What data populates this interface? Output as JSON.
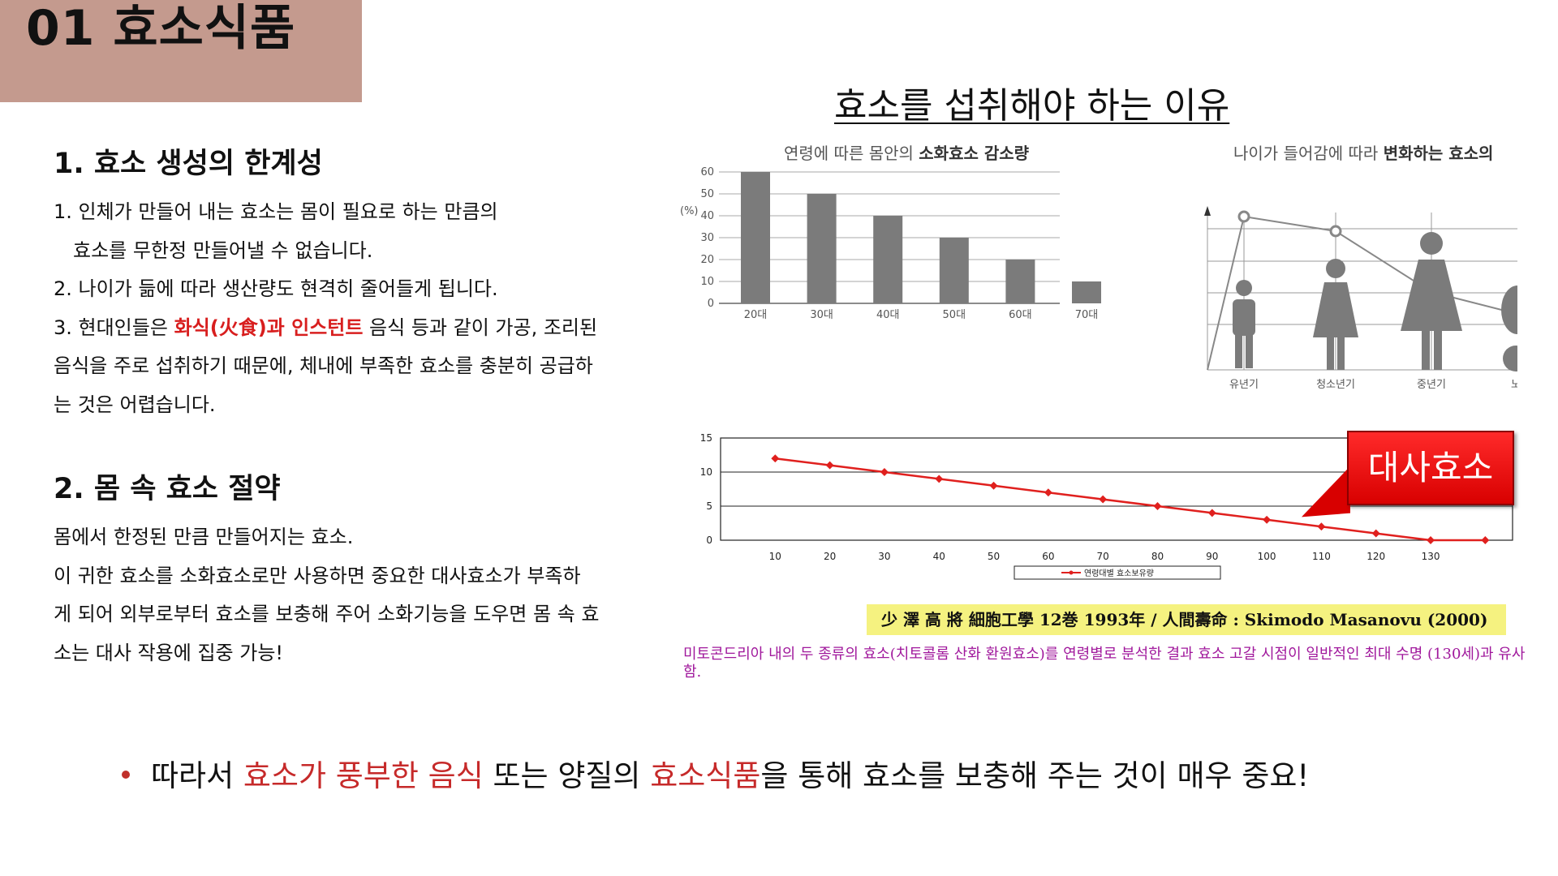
{
  "header": {
    "title": "01  효소식품"
  },
  "left": {
    "section1": {
      "heading": "1. 효소 생성의 한계성",
      "line1": "1. 인체가 만들어 내는 효소는 몸이 필요로 하는 만큼의",
      "line2": "효소를 무한정 만들어낼 수 없습니다.",
      "line3": "2. 나이가 듦에 따라 생산량도 현격히 줄어들게 됩니다.",
      "line4_pre": "3. 현대인들은 ",
      "line4_red": "화식(火食)과 인스턴트",
      "line4_post": " 음식 등과 같이 가공, 조리된",
      "line5": "음식을 주로 섭취하기 때문에, 체내에 부족한 효소를 충분히 공급하",
      "line6": "는 것은 어렵습니다."
    },
    "section2": {
      "heading": "2. 몸 속 효소 절약",
      "line1": "몸에서 한정된 만큼 만들어지는 효소.",
      "line2": "이 귀한 효소를 소화효소로만 사용하면 중요한 대사효소가 부족하",
      "line3": "게 되어 외부로부터 효소를 보충해 주어 소화기능을 도우면 몸 속 효",
      "line4": "소는 대사 작용에 집중 가능!"
    }
  },
  "right": {
    "title": "효소를 섭취해야 하는 이유",
    "citation": "少 澤 高 將  細胞工學 12巻 1993年 / 人間壽命 : Skimodo Masanovu (2000)",
    "note": "미토콘드리아 내의 두 종류의 효소(치토콜롬 산화 환원효소)를 연령별로 분석한 결과 효소 고갈 시점이 일반적인 최대 수명 (130세)과 유사함.",
    "callout": "대사효소"
  },
  "bottom": {
    "pre": "따라서 ",
    "hl1": "효소가 풍부한 음식",
    "mid": " 또는 양질의 ",
    "hl2": "효소식품",
    "post": "을 통해 효소를 보충해 주는 것이 매우 중요!"
  },
  "colors": {
    "title_bg": "#c49a8e",
    "accent_red": "#d81e1e",
    "bar": "#7b7b7b",
    "line_red": "#e0201e",
    "citation_bg": "#f5f280",
    "note": "#a0189c"
  },
  "chart_data": [
    {
      "type": "bar",
      "title_pre": "연령에 따른 몸안의 ",
      "title_bold": "소화효소 감소량",
      "ylabel": "(%)",
      "categories": [
        "20대",
        "30대",
        "40대",
        "50대",
        "60대",
        "70대"
      ],
      "values": [
        60,
        50,
        40,
        30,
        20,
        10
      ],
      "yticks": [
        "0",
        "10",
        "20",
        "30",
        "40",
        "50",
        "60"
      ],
      "ylim": [
        0,
        60
      ],
      "grid": true
    },
    {
      "type": "line",
      "title_pre": "나이가 들어감에 따라 ",
      "title_bold": "변화하는 효소의",
      "categories": [
        "유년기",
        "청소년기",
        "중년기",
        "노"
      ],
      "icons": [
        "child-figure-icon",
        "teen-figure-icon",
        "adult-figure-icon",
        "elderly-figure-icon"
      ]
    },
    {
      "type": "line",
      "series": [
        {
          "name": "연령대별 효소보유량",
          "x": [
            10,
            20,
            30,
            40,
            50,
            60,
            70,
            80,
            90,
            100,
            110,
            120,
            130,
            140
          ],
          "values": [
            12,
            11,
            10,
            9,
            8,
            7,
            6,
            5,
            4,
            3,
            2,
            1,
            0,
            0
          ]
        }
      ],
      "xticks": [
        "10",
        "20",
        "30",
        "40",
        "50",
        "60",
        "70",
        "80",
        "90",
        "100",
        "110",
        "120",
        "130"
      ],
      "yticks": [
        "0",
        "5",
        "10",
        "15"
      ],
      "xlim": [
        0,
        145
      ],
      "ylim": [
        0,
        15
      ],
      "legend": "bottom",
      "grid": true
    }
  ]
}
